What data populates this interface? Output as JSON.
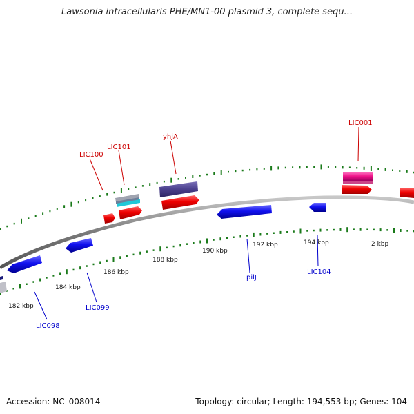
{
  "title": "Lawsonia intracellularis PHE/MN1-00 plasmid 3, complete sequ...",
  "footer": {
    "accession": "Accession: NC_008014",
    "summary": "Topology: circular; Length: 194,553 bp; Genes: 104"
  },
  "colors": {
    "backbone": "#8c8c8c",
    "forward_label": "#cc0000",
    "reverse_label": "#0000cc",
    "gc_ticks": "#1a7a1a",
    "forward_gene": "#ee0000",
    "reverse_gene": "#1010ee",
    "pink_gene": "#ee1188",
    "purple_gene": "#4a3f8c",
    "cyan_gene": "#20c8d8",
    "gray_gene": "#a0a4b0"
  },
  "ticks": [
    "182 kbp",
    "184 kbp",
    "186 kbp",
    "188 kbp",
    "190 kbp",
    "192 kbp",
    "194 kbp",
    "2 kbp"
  ],
  "forward_labels": [
    "LIC100",
    "LIC101",
    "yhjA",
    "LIC001"
  ],
  "reverse_labels": [
    "LIC098",
    "LIC099",
    "pilJ",
    "LIC104"
  ]
}
